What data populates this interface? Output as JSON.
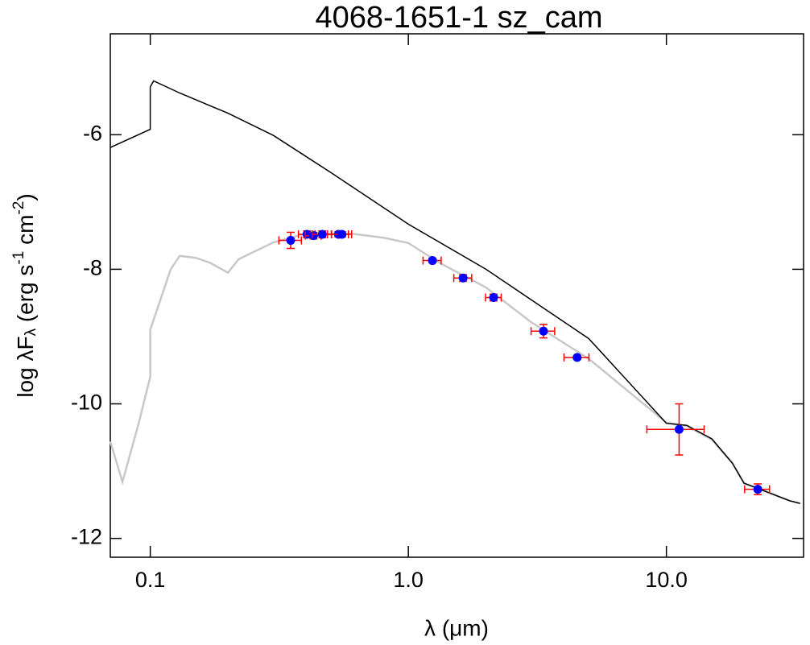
{
  "chart_data": {
    "type": "line",
    "title": "4068-1651-1   sz_cam",
    "xlabel": "λ (μm)",
    "ylabel": [
      "log λF",
      "λ",
      " (erg s",
      "-1",
      " cm",
      "-2",
      ")"
    ],
    "xscale": "log",
    "xlim": [
      0.07,
      34
    ],
    "ylim": [
      -12.28,
      -4.5
    ],
    "xticks": [
      0.1,
      {
        "value": 1,
        "label": "1.0"
      },
      {
        "value": 10,
        "label": "10.0"
      }
    ],
    "yticks": [
      -12,
      -10,
      -8,
      -6
    ],
    "series": [
      {
        "type": "line",
        "color": "#c8c8c8",
        "x": [
          0.07,
          0.078,
          0.09,
          0.1,
          0.1,
          0.12,
          0.13,
          0.15,
          0.17,
          0.2,
          0.22,
          0.3,
          0.4,
          0.6,
          0.8,
          1.0,
          1.3,
          2,
          3,
          5,
          10,
          12,
          15,
          18,
          20,
          22,
          30,
          33
        ],
        "values": [
          -10.56,
          -11.16,
          -10.3,
          -9.6,
          -8.9,
          -8.0,
          -7.8,
          -7.83,
          -7.9,
          -8.05,
          -7.85,
          -7.6,
          -7.47,
          -7.47,
          -7.53,
          -7.61,
          -7.89,
          -8.27,
          -8.79,
          -9.33,
          -10.28,
          -10.33,
          -10.53,
          -10.88,
          -11.18,
          -11.24,
          -11.44,
          -11.48
        ]
      },
      {
        "type": "line",
        "color": "#000000",
        "x": [
          0.07,
          0.1,
          0.1,
          0.103,
          0.13,
          0.2,
          0.3,
          0.5,
          1.0,
          2,
          5,
          10,
          12,
          15,
          18,
          20,
          22,
          30,
          33
        ],
        "values": [
          -6.19,
          -5.92,
          -5.29,
          -5.2,
          -5.38,
          -5.68,
          -6.01,
          -6.56,
          -7.33,
          -8.0,
          -9.03,
          -10.29,
          -10.32,
          -10.52,
          -10.88,
          -11.18,
          -11.24,
          -11.44,
          -11.48
        ]
      },
      {
        "type": "scatter",
        "color": "#0000ff",
        "error_color": "#ff0000",
        "x": [
          0.35,
          0.405,
          0.429,
          0.464,
          0.536,
          0.553,
          1.24,
          1.63,
          2.14,
          3.34,
          4.51,
          11.2,
          22.6
        ],
        "values": [
          -7.57,
          -7.48,
          -7.5,
          -7.48,
          -7.48,
          -7.48,
          -7.87,
          -8.13,
          -8.42,
          -8.92,
          -9.31,
          -10.38,
          -11.27
        ],
        "xerr": [
          0.035,
          0.03,
          0.03,
          0.04,
          0.05,
          0.05,
          0.1,
          0.13,
          0.15,
          0.35,
          0.5,
          2.8,
          2.5
        ],
        "yerr": [
          0.12,
          0.05,
          0.05,
          0.05,
          0.04,
          0.04,
          0.03,
          0.05,
          0.05,
          0.1,
          0.03,
          0.38,
          0.08
        ]
      }
    ]
  }
}
